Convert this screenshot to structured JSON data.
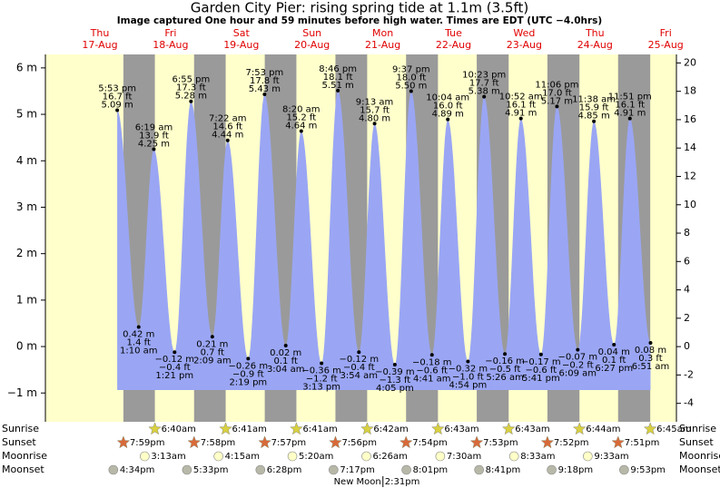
{
  "chart_data": {
    "type": "tide",
    "title": "Garden City Pier: rising  spring tide at 1.1m (3.5ft)",
    "subtitle": "Image captured One hour and 59 minutes before high water. Times are EDT (UTC −4.0hrs)",
    "ylim": [
      -1.62,
      6.29
    ],
    "yticks": [
      {
        "value": -1,
        "label": "−1 m"
      },
      {
        "value": 0,
        "label": "0 m"
      },
      {
        "value": 1,
        "label": "1 m"
      },
      {
        "value": 2,
        "label": "2 m"
      },
      {
        "value": 3,
        "label": "3 m"
      },
      {
        "value": 4,
        "label": "4 m"
      },
      {
        "value": 5,
        "label": "5 m"
      },
      {
        "value": 6,
        "label": "6 m"
      }
    ],
    "y2lim": [
      -5.3,
      20.6
    ],
    "y2ticks": [
      -4,
      -2,
      0,
      2,
      4,
      6,
      8,
      10,
      12,
      14,
      16,
      18,
      20
    ],
    "curve_color": "#9aa6f4",
    "row_labels": [
      "Sunrise",
      "Sunset",
      "Moonrise",
      "Moonset"
    ],
    "new_moon_label": "New Moon",
    "days": [
      {
        "weekday": "Thu",
        "date": "17-Aug",
        "sunset": "7:59pm",
        "moonset": "4:34pm",
        "tides": [
          {
            "time": "5:53 pm",
            "m": 5.09,
            "m_label": "5.09 m",
            "ft_label": "16.7 ft"
          }
        ]
      },
      {
        "weekday": "Fri",
        "date": "18-Aug",
        "sunrise": "6:40am",
        "sunset": "7:58pm",
        "moonrise": "3:13am",
        "moonset": "5:33pm",
        "tides": [
          {
            "time": "1:10 am",
            "m": 0.42,
            "m_label": "0.42 m",
            "ft_label": "1.4 ft"
          },
          {
            "time": "6:19 am",
            "m": 4.25,
            "m_label": "4.25 m",
            "ft_label": "13.9 ft"
          },
          {
            "time": "1:21 pm",
            "m": -0.12,
            "m_label": "−0.12 m",
            "ft_label": "−0.4 ft"
          },
          {
            "time": "6:55 pm",
            "m": 5.28,
            "m_label": "5.28 m",
            "ft_label": "17.3 ft"
          }
        ]
      },
      {
        "weekday": "Sat",
        "date": "19-Aug",
        "sunrise": "6:41am",
        "sunset": "7:57pm",
        "moonrise": "4:15am",
        "moonset": "6:28pm",
        "tides": [
          {
            "time": "2:09 am",
            "m": 0.21,
            "m_label": "0.21 m",
            "ft_label": "0.7 ft"
          },
          {
            "time": "7:22 am",
            "m": 4.44,
            "m_label": "4.44 m",
            "ft_label": "14.6 ft"
          },
          {
            "time": "2:19 pm",
            "m": -0.26,
            "m_label": "−0.26 m",
            "ft_label": "−0.9 ft"
          },
          {
            "time": "7:53 pm",
            "m": 5.43,
            "m_label": "5.43 m",
            "ft_label": "17.8 ft"
          }
        ]
      },
      {
        "weekday": "Sun",
        "date": "20-Aug",
        "sunrise": "6:41am",
        "sunset": "7:56pm",
        "moonrise": "5:20am",
        "moonset": "7:17pm",
        "tides": [
          {
            "time": "3:04 am",
            "m": 0.02,
            "m_label": "0.02 m",
            "ft_label": "0.1 ft"
          },
          {
            "time": "8:20 am",
            "m": 4.64,
            "m_label": "4.64 m",
            "ft_label": "15.2 ft"
          },
          {
            "time": "3:13 pm",
            "m": -0.36,
            "m_label": "−0.36 m",
            "ft_label": "−1.2 ft"
          },
          {
            "time": "8:46 pm",
            "m": 5.51,
            "m_label": "5.51 m",
            "ft_label": "18.1 ft"
          }
        ]
      },
      {
        "weekday": "Mon",
        "date": "21-Aug",
        "sunrise": "6:42am",
        "sunset": "7:54pm",
        "moonrise": "6:26am",
        "moonset": "8:01pm",
        "new_moon": "2:31pm",
        "tides": [
          {
            "time": "3:54 am",
            "m": -0.12,
            "m_label": "−0.12 m",
            "ft_label": "−0.4 ft"
          },
          {
            "time": "9:13 am",
            "m": 4.8,
            "m_label": "4.80 m",
            "ft_label": "15.7 ft"
          },
          {
            "time": "4:05 pm",
            "m": -0.39,
            "m_label": "−0.39 m",
            "ft_label": "−1.3 ft"
          },
          {
            "time": "9:37 pm",
            "m": 5.5,
            "m_label": "5.50 m",
            "ft_label": "18.0 ft"
          }
        ]
      },
      {
        "weekday": "Tue",
        "date": "22-Aug",
        "sunrise": "6:43am",
        "sunset": "7:53pm",
        "moonrise": "7:30am",
        "moonset": "8:41pm",
        "tides": [
          {
            "time": "4:41 am",
            "m": -0.18,
            "m_label": "−0.18 m",
            "ft_label": "−0.6 ft"
          },
          {
            "time": "10:04 am",
            "m": 4.89,
            "m_label": "4.89 m",
            "ft_label": "16.0 ft"
          },
          {
            "time": "4:54 pm",
            "m": -0.32,
            "m_label": "−0.32 m",
            "ft_label": "−1.0 ft"
          },
          {
            "time": "10:23 pm",
            "m": 5.38,
            "m_label": "5.38 m",
            "ft_label": "17.7 ft"
          }
        ]
      },
      {
        "weekday": "Wed",
        "date": "23-Aug",
        "sunrise": "6:43am",
        "sunset": "7:52pm",
        "moonrise": "8:33am",
        "moonset": "9:18pm",
        "tides": [
          {
            "time": "5:26 am",
            "m": -0.16,
            "m_label": "−0.16 m",
            "ft_label": "−0.5 ft"
          },
          {
            "time": "10:52 am",
            "m": 4.91,
            "m_label": "4.91 m",
            "ft_label": "16.1 ft"
          },
          {
            "time": "5:41 pm",
            "m": -0.17,
            "m_label": "−0.17 m",
            "ft_label": "−0.6 ft"
          },
          {
            "time": "11:06 pm",
            "m": 5.17,
            "m_label": "5.17 m",
            "ft_label": "17.0 ft"
          }
        ]
      },
      {
        "weekday": "Thu",
        "date": "24-Aug",
        "sunrise": "6:44am",
        "sunset": "7:51pm",
        "moonrise": "9:33am",
        "moonset": "9:53pm",
        "tides": [
          {
            "time": "6:09 am",
            "m": -0.07,
            "m_label": "−0.07 m",
            "ft_label": "−0.2 ft"
          },
          {
            "time": "11:38 am",
            "m": 4.85,
            "m_label": "4.85 m",
            "ft_label": "15.9 ft"
          },
          {
            "time": "6:27 pm",
            "m": 0.04,
            "m_label": "0.04 m",
            "ft_label": "0.1 ft"
          },
          {
            "time": "11:51 pm",
            "m": 4.91,
            "m_label": "4.91 m",
            "ft_label": "16.1 ft"
          }
        ]
      },
      {
        "weekday": "Fri",
        "date": "25-Aug",
        "sunrise": "6:45am",
        "tides": [
          {
            "time": "6:51 am",
            "m": 0.08,
            "m_label": "0.08 m",
            "ft_label": "0.3 ft"
          }
        ]
      }
    ]
  }
}
